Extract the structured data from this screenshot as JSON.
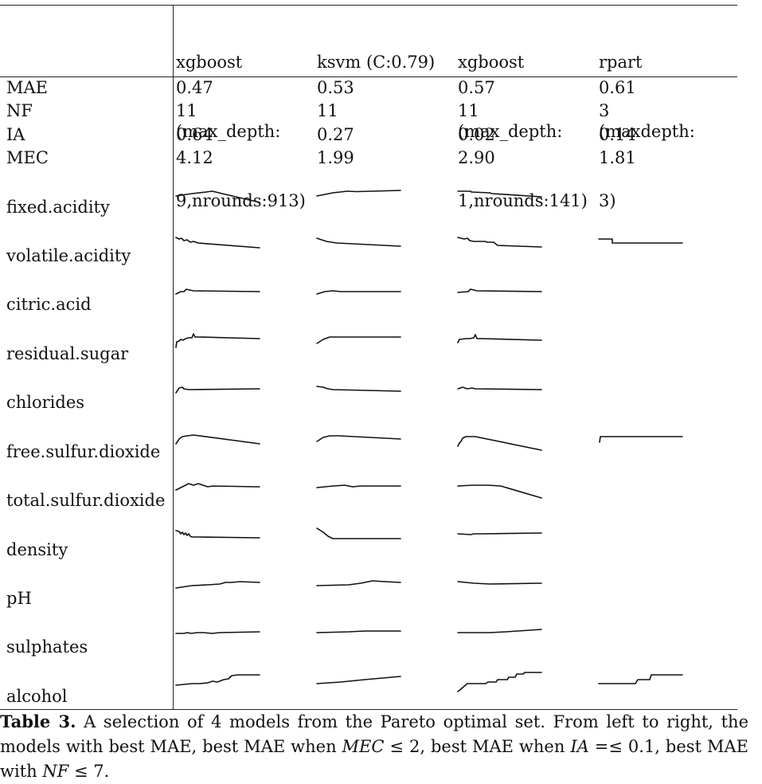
{
  "table": {
    "columns": [
      {
        "lines": [
          "xgboost",
          "(max_depth:",
          "9,nrounds:913)"
        ]
      },
      {
        "lines": [
          "ksvm (C:0.79)"
        ]
      },
      {
        "lines": [
          "xgboost",
          "(max_depth:",
          "1,nrounds:141)"
        ]
      },
      {
        "lines": [
          "rpart",
          "(maxdepth:",
          "3)"
        ]
      }
    ],
    "metric_rows": [
      {
        "label": "MAE",
        "values": [
          "0.47",
          "0.53",
          "0.57",
          "0.61"
        ]
      },
      {
        "label": "NF",
        "values": [
          "11",
          "11",
          "11",
          "3"
        ]
      },
      {
        "label": "IA",
        "values": [
          "0.64",
          "0.27",
          "0.02",
          "0.14"
        ]
      },
      {
        "label": "MEC",
        "values": [
          "4.12",
          "1.99",
          "2.90",
          "1.81"
        ]
      }
    ],
    "feature_rows": [
      {
        "label": "fixed.acidity"
      },
      {
        "label": "volatile.acidity"
      },
      {
        "label": "citric.acid"
      },
      {
        "label": "residual.sugar"
      },
      {
        "label": "chlorides"
      },
      {
        "label": "free.sulfur.dioxide"
      },
      {
        "label": "total.sulfur.dioxide"
      },
      {
        "label": "density"
      },
      {
        "label": "pH"
      },
      {
        "label": "sulphates"
      },
      {
        "label": "alcohol"
      }
    ]
  },
  "caption": {
    "label": "Table 3.",
    "text_1": " A selection of 4 models from the Pareto optimal set. From left to right, the models with best MAE, best MAE when ",
    "mec": "MEC",
    "text_2": " ≤ 2, best MAE when ",
    "ia": "IA",
    "text_3": " =≤ 0.1, best MAE with ",
    "nf": "NF",
    "text_4": " ≤ 7."
  }
}
